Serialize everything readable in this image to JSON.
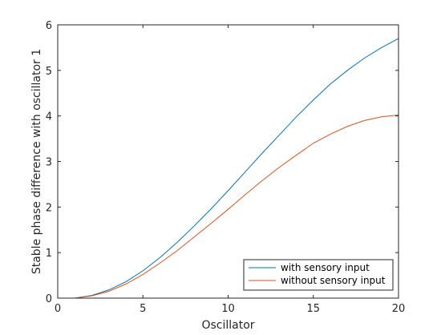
{
  "chart_data": {
    "type": "line",
    "xlabel": "Oscillator",
    "ylabel": "Stable phase difference with oscillator 1",
    "xlim": [
      0,
      20
    ],
    "ylim": [
      0,
      6
    ],
    "xticks": [
      0,
      5,
      10,
      15,
      20
    ],
    "yticks": [
      0,
      1,
      2,
      3,
      4,
      5,
      6
    ],
    "grid": false,
    "legend_position": "bottom-right",
    "x": [
      1,
      2,
      3,
      4,
      5,
      6,
      7,
      8,
      9,
      10,
      11,
      12,
      13,
      14,
      15,
      16,
      17,
      18,
      19,
      20
    ],
    "series": [
      {
        "name": "with sensory input",
        "color": "#0072bd",
        "values": [
          0,
          0.06,
          0.18,
          0.36,
          0.6,
          0.89,
          1.22,
          1.58,
          1.96,
          2.36,
          2.77,
          3.18,
          3.58,
          3.98,
          4.35,
          4.7,
          5.0,
          5.27,
          5.5,
          5.7
        ]
      },
      {
        "name": "without sensory input",
        "color": "#d95319",
        "values": [
          0,
          0.05,
          0.15,
          0.31,
          0.52,
          0.77,
          1.04,
          1.34,
          1.64,
          1.95,
          2.27,
          2.58,
          2.87,
          3.14,
          3.4,
          3.6,
          3.77,
          3.9,
          3.98,
          4.02
        ]
      }
    ]
  }
}
